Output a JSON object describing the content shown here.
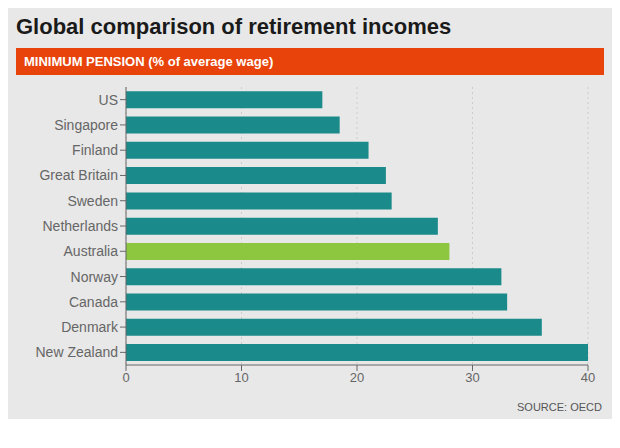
{
  "chart_data": {
    "type": "bar",
    "orientation": "horizontal",
    "title": "Global comparison of retirement incomes",
    "subtitle": "MINIMUM PENSION (% of average wage)",
    "annotations": [
      "SOURCE: OECD"
    ],
    "categories": [
      "US",
      "Singapore",
      "Finland",
      "Great Britain",
      "Sweden",
      "Netherlands",
      "Australia",
      "Norway",
      "Canada",
      "Denmark",
      "New Zealand"
    ],
    "values": [
      17.0,
      18.5,
      21.0,
      22.5,
      23.0,
      27.0,
      28.0,
      32.5,
      33.0,
      36.0,
      40.0
    ],
    "colors": [
      "#1A8A8A",
      "#1A8A8A",
      "#1A8A8A",
      "#1A8A8A",
      "#1A8A8A",
      "#1A8A8A",
      "#8DC63F",
      "#1A8A8A",
      "#1A8A8A",
      "#1A8A8A",
      "#1A8A8A"
    ],
    "xlim": [
      0,
      40
    ],
    "xticks": [
      0,
      10,
      20,
      30,
      40
    ],
    "grid": true
  }
}
